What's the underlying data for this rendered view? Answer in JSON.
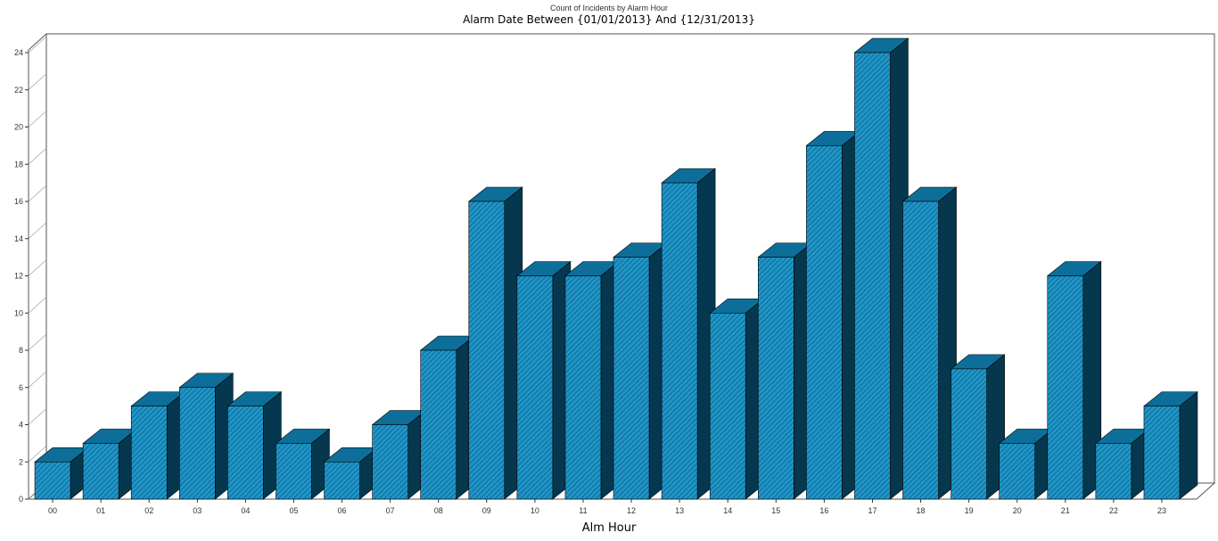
{
  "chart_data": {
    "type": "bar",
    "title": "Count of Incidents by Alarm Hour",
    "subtitle": "Alarm Date Between {01/01/2013} And {12/31/2013}",
    "xlabel": "Alm Hour",
    "ylabel": "",
    "ylim": [
      0,
      24
    ],
    "yticks": [
      0,
      2,
      4,
      6,
      8,
      10,
      12,
      14,
      16,
      18,
      20,
      22,
      24
    ],
    "categories": [
      "00",
      "01",
      "02",
      "03",
      "04",
      "05",
      "06",
      "07",
      "08",
      "09",
      "10",
      "11",
      "12",
      "13",
      "14",
      "15",
      "16",
      "17",
      "18",
      "19",
      "20",
      "21",
      "22",
      "23"
    ],
    "values": [
      2,
      3,
      5,
      6,
      5,
      3,
      2,
      4,
      8,
      16,
      12,
      12,
      13,
      17,
      10,
      13,
      19,
      24,
      16,
      7,
      3,
      12,
      3,
      5
    ],
    "style": "3d-hatched",
    "grid": false,
    "colors": {
      "front": "#1f95c8",
      "side": "#05384f",
      "top": "#0d6f99",
      "hatch": "#0a4f70",
      "frame": "#555555"
    }
  }
}
